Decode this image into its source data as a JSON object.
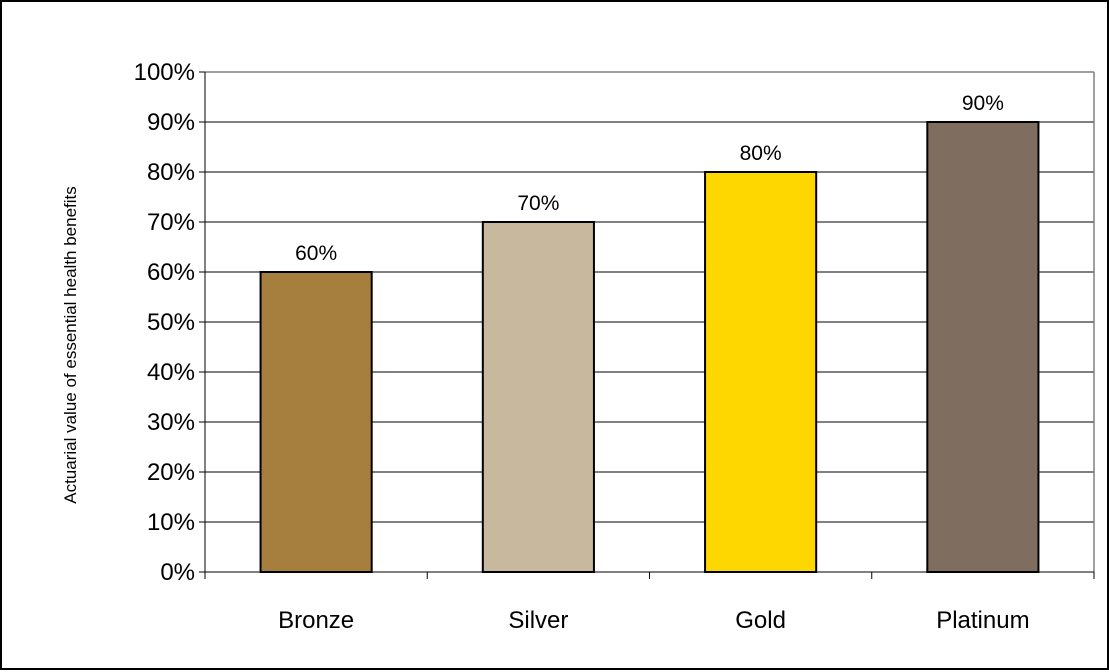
{
  "chart_data": {
    "type": "bar",
    "title": "",
    "xlabel": "",
    "ylabel": "Actuarial value of essential health benefits",
    "categories": [
      "Bronze",
      "Silver",
      "Gold",
      "Platinum"
    ],
    "values": [
      60,
      70,
      80,
      90
    ],
    "data_labels": [
      "60%",
      "70%",
      "80%",
      "90%"
    ],
    "colors": [
      "#A67F3F",
      "#C8B89E",
      "#FFD700",
      "#7F6E5F"
    ],
    "ylim": [
      0,
      100
    ],
    "y_ticks": [
      0,
      10,
      20,
      30,
      40,
      50,
      60,
      70,
      80,
      90,
      100
    ],
    "y_tick_labels": [
      "0%",
      "10%",
      "20%",
      "30%",
      "40%",
      "50%",
      "60%",
      "70%",
      "80%",
      "90%",
      "100%"
    ],
    "grid": true,
    "legend": "none"
  }
}
